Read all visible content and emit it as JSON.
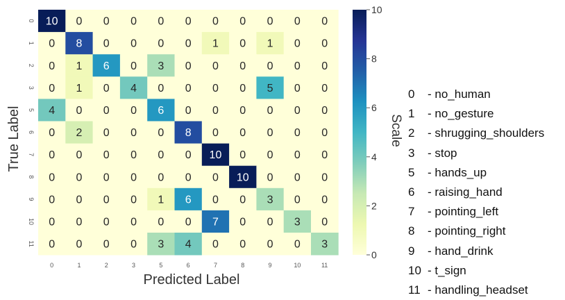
{
  "chart_data": {
    "type": "heatmap",
    "xlabel": "Predicted Label",
    "ylabel": "True Label",
    "x_ticks": [
      "0",
      "1",
      "2",
      "3",
      "5",
      "6",
      "7",
      "8",
      "9",
      "10",
      "11"
    ],
    "y_ticks": [
      "0",
      "1",
      "2",
      "3",
      "5",
      "6",
      "7",
      "8",
      "9",
      "10",
      "11"
    ],
    "values": [
      [
        10,
        0,
        0,
        0,
        0,
        0,
        0,
        0,
        0,
        0,
        0
      ],
      [
        0,
        8,
        0,
        0,
        0,
        0,
        1,
        0,
        1,
        0,
        0
      ],
      [
        0,
        1,
        6,
        0,
        3,
        0,
        0,
        0,
        0,
        0,
        0
      ],
      [
        0,
        1,
        0,
        4,
        0,
        0,
        0,
        0,
        5,
        0,
        0
      ],
      [
        4,
        0,
        0,
        0,
        6,
        0,
        0,
        0,
        0,
        0,
        0
      ],
      [
        0,
        2,
        0,
        0,
        0,
        8,
        0,
        0,
        0,
        0,
        0
      ],
      [
        0,
        0,
        0,
        0,
        0,
        0,
        10,
        0,
        0,
        0,
        0
      ],
      [
        0,
        0,
        0,
        0,
        0,
        0,
        0,
        10,
        0,
        0,
        0
      ],
      [
        0,
        0,
        0,
        0,
        1,
        6,
        0,
        0,
        3,
        0,
        0
      ],
      [
        0,
        0,
        0,
        0,
        0,
        0,
        7,
        0,
        0,
        3,
        0
      ],
      [
        0,
        0,
        0,
        0,
        3,
        4,
        0,
        0,
        0,
        0,
        3
      ]
    ],
    "colorbar": {
      "label": "Scale",
      "range": [
        0,
        10
      ],
      "ticks": [
        "0",
        "2",
        "4",
        "6",
        "8",
        "10"
      ],
      "colormap": "YlGnBu"
    },
    "grid": false
  },
  "legend": [
    {
      "code": "0",
      "text": "- no_human"
    },
    {
      "code": "1",
      "text": "- no_gesture"
    },
    {
      "code": "2",
      "text": "- shrugging_shoulders"
    },
    {
      "code": "3",
      "text": "- stop"
    },
    {
      "code": "5",
      "text": "- hands_up"
    },
    {
      "code": "6",
      "text": "- raising_hand"
    },
    {
      "code": "7",
      "text": "- pointing_left"
    },
    {
      "code": "8",
      "text": "- pointing_right"
    },
    {
      "code": "9",
      "text": "- hand_drink"
    },
    {
      "code": "10",
      "text": "- t_sign"
    },
    {
      "code": "11",
      "text": "- handling_headset"
    }
  ]
}
